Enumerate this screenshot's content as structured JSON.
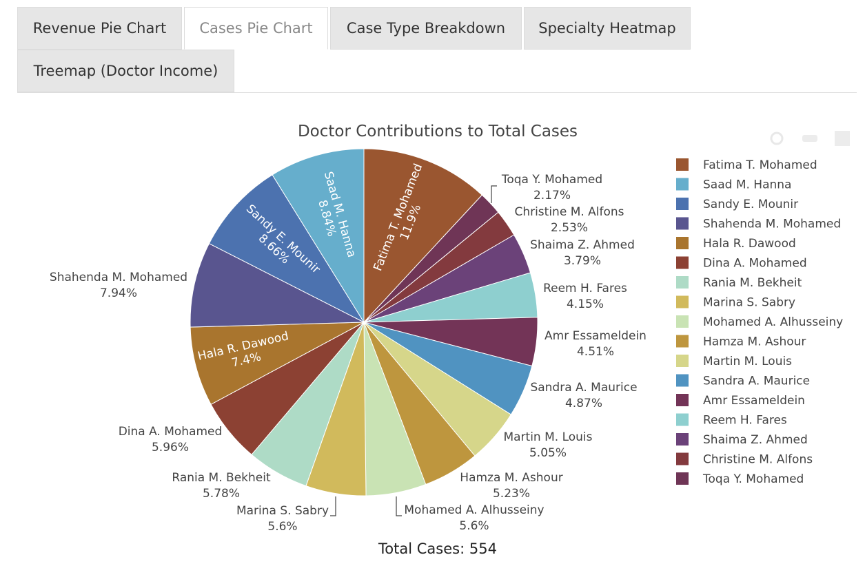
{
  "tabs": [
    {
      "label": "Revenue Pie Chart",
      "active": false
    },
    {
      "label": "Cases Pie Chart",
      "active": true
    },
    {
      "label": "Case Type Breakdown",
      "active": false
    },
    {
      "label": "Specialty Heatmap",
      "active": false
    },
    {
      "label": "Treemap (Doctor Income)",
      "active": false
    }
  ],
  "modebar": [
    "camera-icon",
    "tag-icon",
    "bar-chart-icon"
  ],
  "chart_data": {
    "type": "pie",
    "title": "Doctor Contributions to Total Cases",
    "annotation": "Total Cases: 554",
    "legend_position": "right",
    "slices": [
      {
        "label": "Fatima T. Mohamed",
        "percent_label": "11.9%",
        "value": 11.9,
        "color": "#9A5630"
      },
      {
        "label": "Toqa Y. Mohamed",
        "percent_label": "2.17%",
        "value": 2.17,
        "color": "#6F3556"
      },
      {
        "label": "Christine M. Alfons",
        "percent_label": "2.53%",
        "value": 2.53,
        "color": "#833A3E"
      },
      {
        "label": "Shaima Z. Ahmed",
        "percent_label": "3.79%",
        "value": 3.79,
        "color": "#6B4279"
      },
      {
        "label": "Reem H. Fares",
        "percent_label": "4.15%",
        "value": 4.15,
        "color": "#8ECFCF"
      },
      {
        "label": "Amr Essameldein",
        "percent_label": "4.51%",
        "value": 4.51,
        "color": "#733457"
      },
      {
        "label": "Sandra A. Maurice",
        "percent_label": "4.87%",
        "value": 4.87,
        "color": "#5093C1"
      },
      {
        "label": "Martin M. Louis",
        "percent_label": "5.05%",
        "value": 5.05,
        "color": "#D6D68A"
      },
      {
        "label": "Hamza M. Ashour",
        "percent_label": "5.23%",
        "value": 5.23,
        "color": "#BE963E"
      },
      {
        "label": "Mohamed A. Alhusseiny",
        "percent_label": "5.6%",
        "value": 5.6,
        "color": "#C9E3B4"
      },
      {
        "label": "Marina S. Sabry",
        "percent_label": "5.6%",
        "value": 5.6,
        "color": "#D1BA5C"
      },
      {
        "label": "Rania M. Bekheit",
        "percent_label": "5.78%",
        "value": 5.78,
        "color": "#AEDBC6"
      },
      {
        "label": "Dina A. Mohamed",
        "percent_label": "5.96%",
        "value": 5.96,
        "color": "#8C4133"
      },
      {
        "label": "Hala R. Dawood",
        "percent_label": "7.4%",
        "value": 7.4,
        "color": "#A9752E"
      },
      {
        "label": "Shahenda M. Mohamed",
        "percent_label": "7.94%",
        "value": 7.94,
        "color": "#59558F"
      },
      {
        "label": "Sandy E. Mounir",
        "percent_label": "8.66%",
        "value": 8.66,
        "color": "#4C72AF"
      },
      {
        "label": "Saad M. Hanna",
        "percent_label": "8.84%",
        "value": 8.84,
        "color": "#66AECC"
      }
    ],
    "legend_order": [
      "Fatima T. Mohamed",
      "Saad M. Hanna",
      "Sandy E. Mounir",
      "Shahenda M. Mohamed",
      "Hala R. Dawood",
      "Dina A. Mohamed",
      "Rania M. Bekheit",
      "Marina S. Sabry",
      "Mohamed A. Alhusseiny",
      "Hamza M. Ashour",
      "Martin M. Louis",
      "Sandra A. Maurice",
      "Amr Essameldein",
      "Reem H. Fares",
      "Shaima Z. Ahmed",
      "Christine M. Alfons",
      "Toqa Y. Mohamed"
    ]
  }
}
